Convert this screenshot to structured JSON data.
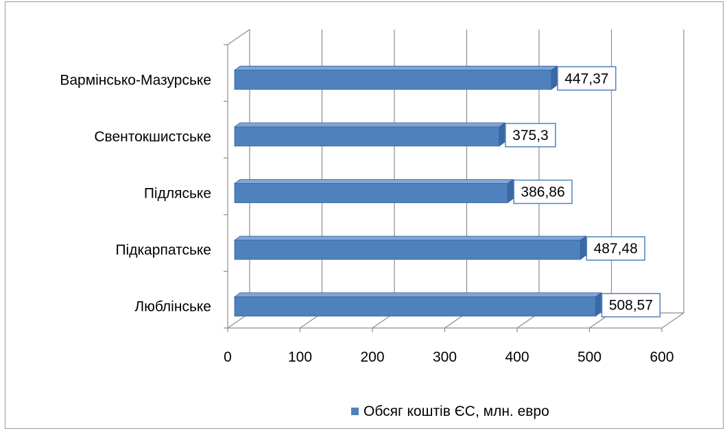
{
  "chart_data": {
    "type": "bar",
    "orientation": "horizontal",
    "style": "3d-clustered",
    "categories": [
      "Люблінське",
      "Підкарпатське",
      "Підляське",
      "Свентокшистське",
      "Вармінсько-Мазурське"
    ],
    "series": [
      {
        "name": "Обсяг коштів ЄС, млн. евро",
        "values": [
          508.57,
          487.48,
          386.86,
          375.3,
          447.37
        ],
        "labels": [
          "508,57",
          "487,48",
          "386,86",
          "375,3",
          "447,37"
        ],
        "color": "#4F81BD"
      }
    ],
    "xlim": [
      0,
      600
    ],
    "xticks": [
      0,
      100,
      200,
      300,
      400,
      500,
      600
    ],
    "grid": true,
    "legend_position": "bottom"
  }
}
